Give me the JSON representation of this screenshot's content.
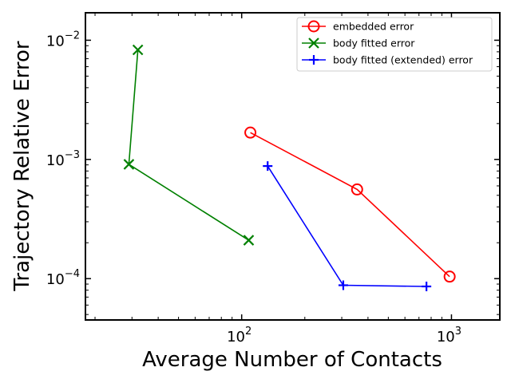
{
  "chart_data": {
    "type": "line",
    "title": "",
    "xlabel": "Average Number of Contacts",
    "ylabel": "Trajectory Relative Error",
    "xscale": "log",
    "yscale": "log",
    "xlim": [
      18,
      1700
    ],
    "ylim": [
      4.5e-05,
      0.017
    ],
    "grid": false,
    "legend_position": "top-right",
    "x_ticks": [
      {
        "value": 100,
        "base": "10",
        "exp": "2"
      },
      {
        "value": 1000,
        "base": "10",
        "exp": "3"
      }
    ],
    "y_ticks": [
      {
        "value": 0.0001,
        "base": "10",
        "exp": "−4"
      },
      {
        "value": 0.001,
        "base": "10",
        "exp": "−3"
      },
      {
        "value": 0.01,
        "base": "10",
        "exp": "−2"
      }
    ],
    "series": [
      {
        "name": "embedded error",
        "color": "#ff0000",
        "marker": "circle",
        "x": [
          110,
          355,
          980
        ],
        "y": [
          0.00168,
          0.00056,
          0.000104
        ]
      },
      {
        "name": "body fitted error",
        "color": "#008000",
        "marker": "x",
        "x": [
          32,
          29,
          108
        ],
        "y": [
          0.0083,
          0.00091,
          0.00021
        ]
      },
      {
        "name": "body fitted (extended) error",
        "color": "#0000ff",
        "marker": "plus",
        "x": [
          133,
          305,
          760
        ],
        "y": [
          0.00088,
          8.8e-05,
          8.6e-05
        ]
      }
    ]
  }
}
